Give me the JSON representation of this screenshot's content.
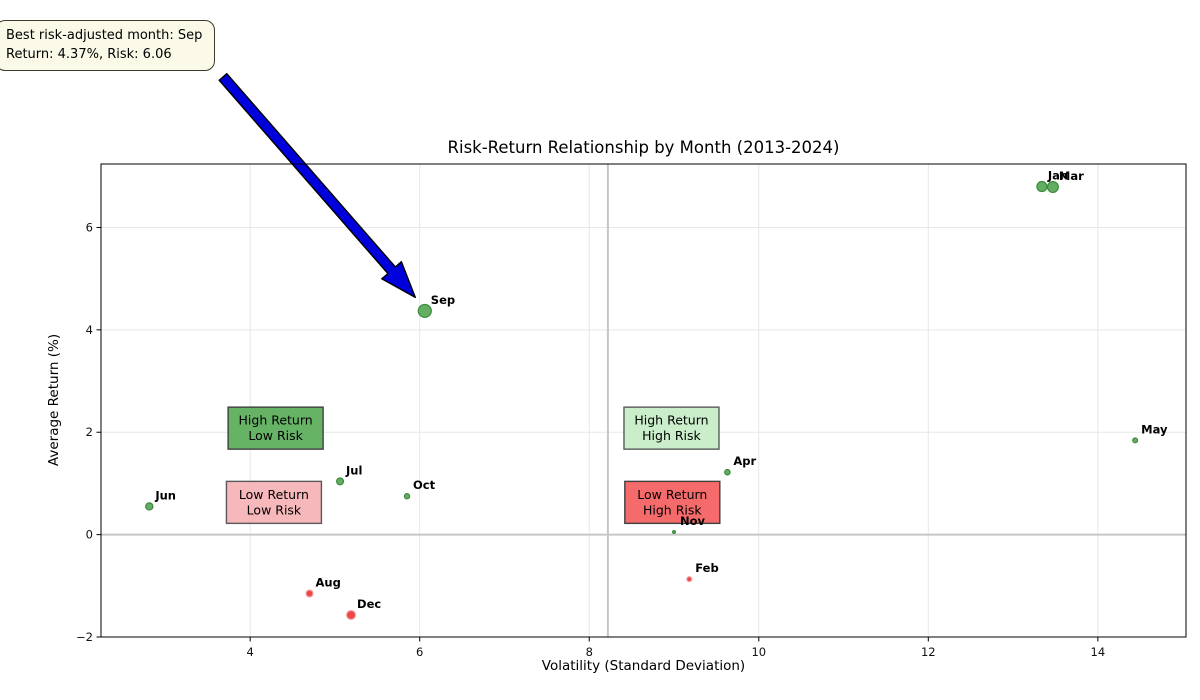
{
  "figure": {
    "title": "Risk-Return Relationship by Month (2013-2024)",
    "xlabel": "Volatility (Standard Deviation)",
    "ylabel": "Average Return (%)"
  },
  "annotation": {
    "line1": "Best risk-adjusted month: Sep",
    "line2": "Return: 4.37%, Risk: 6.06",
    "target_month": "Sep",
    "arrow_color": "#0000dd",
    "box_fill": "#fbfae9"
  },
  "chart_data": {
    "type": "scatter",
    "title": "Risk-Return Relationship by Month (2013-2024)",
    "xlabel": "Volatility (Standard Deviation)",
    "ylabel": "Average Return (%)",
    "xlim": [
      2.24,
      15.04
    ],
    "ylim": [
      -2.0,
      7.24
    ],
    "xticks": [
      4,
      6,
      8,
      10,
      12,
      14
    ],
    "yticks": [
      -2,
      0,
      2,
      4,
      6
    ],
    "grid": true,
    "legend": false,
    "reference_lines": {
      "horizontal_y": 0,
      "vertical_x": 8.22
    },
    "points": [
      {
        "month": "Jan",
        "volatility": 13.34,
        "avg_return": 6.8,
        "radius_px": 5.0,
        "group": "positive"
      },
      {
        "month": "Feb",
        "volatility": 9.18,
        "avg_return": -0.87,
        "radius_px": 2.4,
        "group": "negative"
      },
      {
        "month": "Mar",
        "volatility": 13.47,
        "avg_return": 6.79,
        "radius_px": 5.4,
        "group": "positive"
      },
      {
        "month": "Apr",
        "volatility": 9.63,
        "avg_return": 1.22,
        "radius_px": 2.7,
        "group": "positive"
      },
      {
        "month": "May",
        "volatility": 14.44,
        "avg_return": 1.84,
        "radius_px": 2.4,
        "group": "positive"
      },
      {
        "month": "Jun",
        "volatility": 2.81,
        "avg_return": 0.55,
        "radius_px": 3.6,
        "group": "positive"
      },
      {
        "month": "Jul",
        "volatility": 5.06,
        "avg_return": 1.04,
        "radius_px": 3.4,
        "group": "positive"
      },
      {
        "month": "Aug",
        "volatility": 4.7,
        "avg_return": -1.15,
        "radius_px": 3.4,
        "group": "negative"
      },
      {
        "month": "Sep",
        "volatility": 6.06,
        "avg_return": 4.37,
        "radius_px": 6.5,
        "group": "positive"
      },
      {
        "month": "Oct",
        "volatility": 5.85,
        "avg_return": 0.75,
        "radius_px": 2.6,
        "group": "positive"
      },
      {
        "month": "Nov",
        "volatility": 9.0,
        "avg_return": 0.05,
        "radius_px": 1.4,
        "group": "positive"
      },
      {
        "month": "Dec",
        "volatility": 5.19,
        "avg_return": -1.57,
        "radius_px": 4.4,
        "group": "negative"
      }
    ],
    "quadrants": [
      {
        "id": "high-return-low-risk",
        "lines": [
          "High Return",
          "Low Risk"
        ],
        "x": 4.3,
        "y": 2.08,
        "fill": "#66b366",
        "border": "#3f3f3f"
      },
      {
        "id": "low-return-low-risk",
        "lines": [
          "Low Return",
          "Low Risk"
        ],
        "x": 4.28,
        "y": 0.63,
        "fill": "#f6b8ba",
        "border": "#5a5a5a"
      },
      {
        "id": "high-return-high-risk",
        "lines": [
          "High Return",
          "High Risk"
        ],
        "x": 8.97,
        "y": 2.08,
        "fill": "#caeeca",
        "border": "#5a5a5a"
      },
      {
        "id": "low-return-high-risk",
        "lines": [
          "Low Return",
          "High Risk"
        ],
        "x": 8.98,
        "y": 0.63,
        "fill": "#f56a6a",
        "border": "#3f3f3f"
      }
    ],
    "colors": {
      "positive_fill": "#63ae63",
      "positive_edge": "#3c8a3c",
      "negative_fill": "#ee4545",
      "negative_edge": "#f29b9b",
      "grid": "#e7e7e7",
      "reference_line": "#c6c6c6",
      "spine": "#000000",
      "month_label": "#000000"
    }
  }
}
